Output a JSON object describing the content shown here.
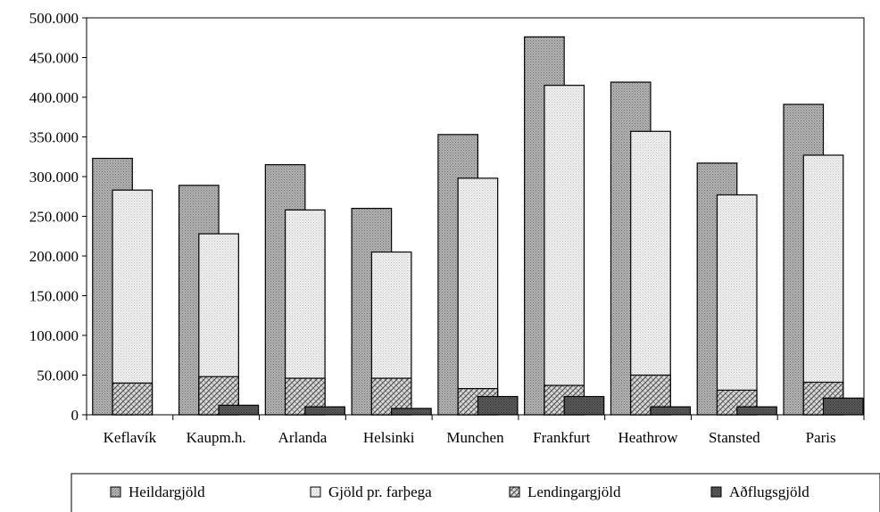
{
  "chart_data": {
    "type": "bar",
    "categories": [
      "Keflavík",
      "Kaupm.h.",
      "Arlanda",
      "Helsinki",
      "Munchen",
      "Frankfurt",
      "Heathrow",
      "Stansted",
      "Paris"
    ],
    "series": [
      {
        "name": "Heildargjöld",
        "values": [
          323000,
          289000,
          315000,
          260000,
          353000,
          476000,
          419000,
          317000,
          391000
        ],
        "color": "#a6a6a6",
        "pattern": "dark-dots"
      },
      {
        "name": "Gjöld pr. farþega",
        "values": [
          283000,
          228000,
          258000,
          205000,
          298000,
          415000,
          357000,
          277000,
          327000
        ],
        "color": "#e0e0e0",
        "pattern": "light-dots"
      },
      {
        "name": "Lendingargjöld",
        "values": [
          40000,
          48000,
          46000,
          46000,
          33000,
          37000,
          50000,
          31000,
          41000
        ],
        "color": "#bfbfbf",
        "pattern": "crosshatch"
      },
      {
        "name": "Aðflugsgjöld",
        "values": [
          0,
          12000,
          10000,
          8000,
          23000,
          23000,
          10000,
          10000,
          21000
        ],
        "color": "#595959",
        "pattern": "dark-dots"
      }
    ],
    "yticks": [
      "0",
      "50.000",
      "100.000",
      "150.000",
      "200.000",
      "250.000",
      "300.000",
      "350.000",
      "400.000",
      "450.000",
      "500.000"
    ],
    "ylim": [
      0,
      500000
    ],
    "title": "",
    "xlabel": "",
    "ylabel": "",
    "grid": false,
    "legend_position": "bottom"
  }
}
